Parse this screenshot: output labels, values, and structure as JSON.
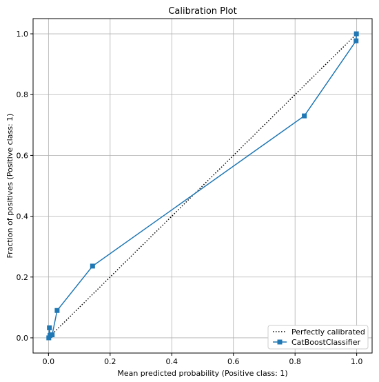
{
  "chart_data": {
    "type": "line",
    "title": "Calibration Plot",
    "xlabel": "Mean predicted probability (Positive class: 1)",
    "ylabel": "Fraction of positives (Positive class: 1)",
    "xlim": [
      -0.05,
      1.05
    ],
    "ylim": [
      -0.05,
      1.05
    ],
    "xticks": [
      "0.0",
      "0.2",
      "0.4",
      "0.6",
      "0.8",
      "1.0"
    ],
    "yticks": [
      "0.0",
      "0.2",
      "0.4",
      "0.6",
      "0.8",
      "1.0"
    ],
    "grid": true,
    "legend_position": "lower-right",
    "series": [
      {
        "name": "Perfectly calibrated",
        "style": "dotted",
        "color": "#000000",
        "x": [
          0,
          1
        ],
        "y": [
          0,
          1
        ]
      },
      {
        "name": "CatBoostClassifier",
        "style": "solid-square-markers",
        "color": "#1f77b4",
        "x": [
          0.001,
          0.003,
          0.005,
          0.012,
          0.028,
          0.143,
          0.83,
          0.998,
          0.999
        ],
        "y": [
          0.0,
          0.033,
          0.008,
          0.01,
          0.09,
          0.236,
          0.73,
          0.977,
          1.0
        ]
      }
    ]
  }
}
